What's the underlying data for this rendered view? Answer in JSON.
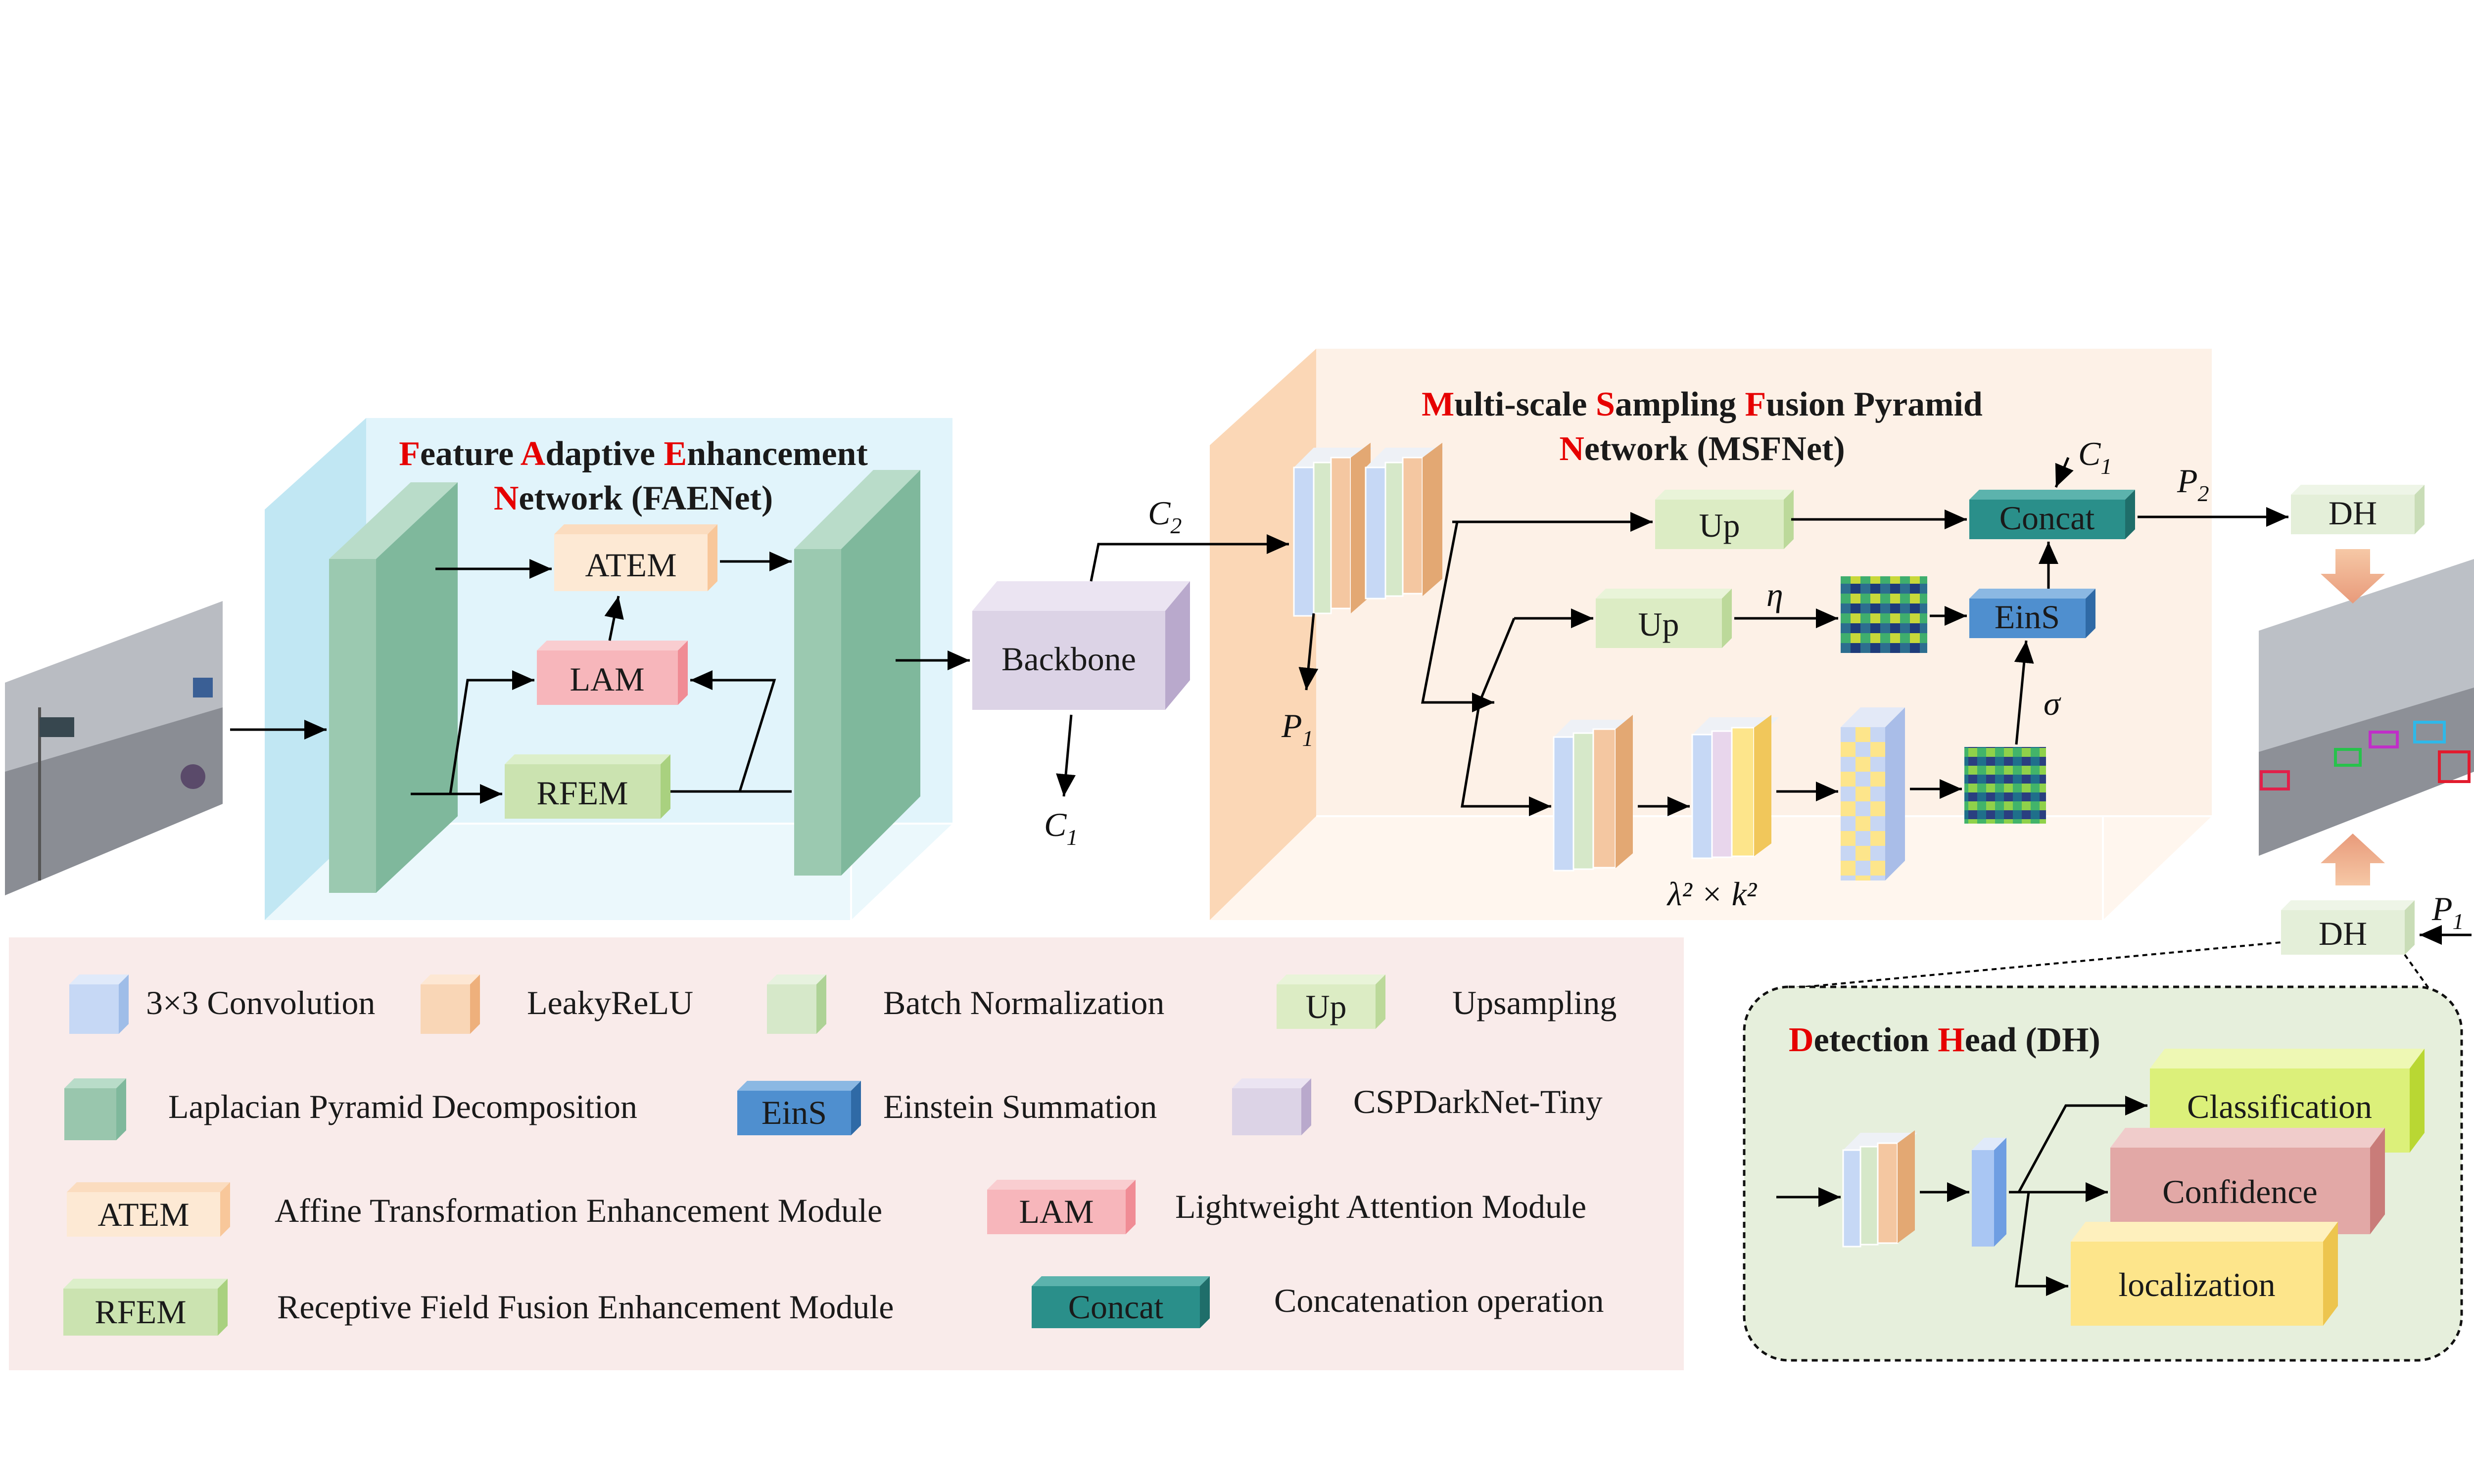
{
  "faenet": {
    "title_line1": [
      [
        "F",
        "red"
      ],
      [
        "eature ",
        ""
      ],
      [
        "A",
        "red"
      ],
      [
        "daptive ",
        ""
      ],
      [
        "E",
        "red"
      ],
      [
        "nhancement",
        ""
      ]
    ],
    "title_line2": [
      [
        "N",
        "red"
      ],
      [
        "etwork (FAENet)",
        ""
      ]
    ]
  },
  "msfnet": {
    "title_line1": [
      [
        "M",
        "red"
      ],
      [
        "ulti-scale ",
        ""
      ],
      [
        "S",
        "red"
      ],
      [
        "ampling ",
        ""
      ],
      [
        "F",
        "red"
      ],
      [
        "usion Pyramid",
        ""
      ]
    ],
    "title_line2": [
      [
        "N",
        "red"
      ],
      [
        "etwork (MSFNet)",
        ""
      ]
    ]
  },
  "dh_section": {
    "title": [
      [
        "D",
        "red"
      ],
      [
        "etection ",
        ""
      ],
      [
        "H",
        "red"
      ],
      [
        "ead (DH)",
        ""
      ]
    ]
  },
  "blocks": {
    "atem": "ATEM",
    "lam": "LAM",
    "rfem": "RFEM",
    "backbone": "Backbone",
    "up1": "Up",
    "up2": "Up",
    "concat": "Concat",
    "eins": "EinS",
    "dh_top": "DH",
    "dh_bottom": "DH",
    "classification": "Classification",
    "confidence": "Confidence",
    "localization": "localization"
  },
  "symbols": {
    "c2": "C",
    "c2_sub": "2",
    "c1": "C",
    "c1_sub": "1",
    "c1_top": "C",
    "c1_top_sub": "1",
    "p1": "P",
    "p1_sub": "1",
    "p2": "P",
    "p2_sub": "2",
    "p1_right": "P",
    "p1_right_sub": "1",
    "eta": "η",
    "sigma": "σ",
    "lambda_k": "λ² × k²"
  },
  "legend": {
    "conv": "3×3 Convolution",
    "leaky": "LeakyReLU",
    "bn": "Batch Normalization",
    "up_box": "Up",
    "up": "Upsampling",
    "lap": "Laplacian Pyramid Decomposition",
    "eins_box": "EinS",
    "eins": "Einstein Summation",
    "csp": "CSPDarkNet-Tiny",
    "atem_box": "ATEM",
    "atem": "Affine Transformation Enhancement Module",
    "lam_box": "LAM",
    "lam": "Lightweight Attention Module",
    "rfem_box": "RFEM",
    "rfem": "Receptive Field Fusion Enhancement Module",
    "concat_box": "Concat",
    "concat": "Concatenation operation"
  },
  "colors": {
    "conv": "#c6d8f5",
    "leaky": "#f9d6b6",
    "bn": "#d6e8c9",
    "lap": "#99c6ad",
    "up": "#dcecc4",
    "eins": "#4f8fcf",
    "csp": "#dcd3e6",
    "atem": "#fde9d4",
    "lam": "#f7b6bb",
    "rfem": "#cbe3b0",
    "concat": "#2a8f8a",
    "classification": "#dcf07a",
    "confidence": "#e2a8a6",
    "localization": "#fde58b"
  }
}
